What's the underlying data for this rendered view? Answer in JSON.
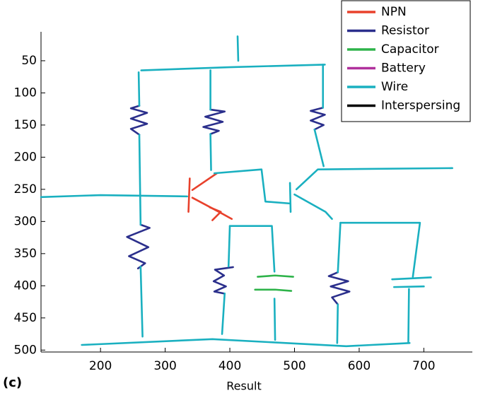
{
  "chart_data": {
    "type": "strokes",
    "x_label": "Result",
    "panel_label": "(c)",
    "xlim": [
      108,
      775
    ],
    "ylim": [
      5,
      503
    ],
    "y_inverted": true,
    "xticks": [
      200,
      300,
      400,
      500,
      600,
      700
    ],
    "yticks": [
      50,
      100,
      150,
      200,
      250,
      300,
      350,
      400,
      450,
      500
    ],
    "legend": "top-right",
    "series": [
      {
        "name": "NPN",
        "color": "#e8412c",
        "strokes": [
          {
            "x": [
              338,
              336
            ],
            "y": [
              233,
              285
            ]
          },
          {
            "x": [
              380,
              342
            ],
            "y": [
              225,
              251
            ]
          },
          {
            "x": [
              342,
              383,
              403
            ],
            "y": [
              263,
              285,
              296
            ]
          },
          {
            "x": [
              369,
              386,
              373
            ],
            "y": [
              278,
              285,
              298
            ]
          }
        ]
      },
      {
        "name": "Resistor",
        "color": "#2b2f8c",
        "strokes": [
          {
            "x": [
              260,
              247,
              272,
              247,
              272,
              247,
              260
            ],
            "y": [
              120,
              124,
              131,
              140,
              148,
              156,
              165
            ]
          },
          {
            "x": [
              262,
              276,
              241,
              274,
              244,
              269,
              258
            ],
            "y": [
              305,
              310,
              324,
              340,
              354,
              365,
              373
            ]
          },
          {
            "x": [
              370,
              392,
              362,
              389,
              359,
              383,
              370
            ],
            "y": [
              126,
              129,
              137,
              145,
              153,
              159,
              164
            ]
          },
          {
            "x": [
              544,
              525,
              547,
              525,
              545,
              531
            ],
            "y": [
              123,
              128,
              134,
              143,
              150,
              157
            ]
          },
          {
            "x": [
              405,
              377,
              391,
              375,
              394,
              376,
              391
            ],
            "y": [
              371,
              375,
              384,
              393,
              401,
              409,
              412
            ]
          },
          {
            "x": [
              567,
              553,
              583,
              556,
              585,
              558,
              567
            ],
            "y": [
              379,
              385,
              393,
              401,
              409,
              418,
              429
            ]
          }
        ]
      },
      {
        "name": "Capacitor",
        "color": "#2eb34a",
        "strokes": [
          {
            "x": [
              443,
              470,
              498
            ],
            "y": [
              386,
              384,
              386
            ]
          },
          {
            "x": [
              439,
              470,
              495
            ],
            "y": [
              406,
              406,
              408
            ]
          }
        ]
      },
      {
        "name": "Battery",
        "color": "#b0309c",
        "strokes": []
      },
      {
        "name": "Wire",
        "color": "#1ab0c0",
        "strokes": [
          {
            "x": [
              263,
              400,
              547
            ],
            "y": [
              65,
              60,
              56
            ]
          },
          {
            "x": [
              412,
              413
            ],
            "y": [
              12,
              50
            ]
          },
          {
            "x": [
              259,
              260
            ],
            "y": [
              68,
              120
            ]
          },
          {
            "x": [
              260,
              262
            ],
            "y": [
              165,
              305
            ]
          },
          {
            "x": [
              262,
              265
            ],
            "y": [
              370,
              479
            ]
          },
          {
            "x": [
              370,
              370
            ],
            "y": [
              65,
              126
            ]
          },
          {
            "x": [
              370,
              371
            ],
            "y": [
              164,
              220
            ]
          },
          {
            "x": [
              544,
              544
            ],
            "y": [
              56,
              123
            ]
          },
          {
            "x": [
              531,
              545
            ],
            "y": [
              157,
              214
            ]
          },
          {
            "x": [
              108,
              200,
              334
            ],
            "y": [
              262,
              259,
              261
            ]
          },
          {
            "x": [
              376,
              449,
              455,
              493
            ],
            "y": [
              225,
              219,
              269,
              272
            ]
          },
          {
            "x": [
              503,
              536,
              744
            ],
            "y": [
              250,
              219,
              217
            ]
          },
          {
            "x": [
              493,
              494
            ],
            "y": [
              240,
              285
            ]
          },
          {
            "x": [
              500,
              548,
              558
            ],
            "y": [
              258,
              285,
              296
            ]
          },
          {
            "x": [
              400,
              465,
              469
            ],
            "y": [
              307,
              307,
              378
            ]
          },
          {
            "x": [
              400,
              398
            ],
            "y": [
              307,
              370
            ]
          },
          {
            "x": [
              469,
              470
            ],
            "y": [
              420,
              484
            ]
          },
          {
            "x": [
              392,
              388
            ],
            "y": [
              412,
              475
            ]
          },
          {
            "x": [
              571,
              694,
              683
            ],
            "y": [
              302,
              302,
              386
            ]
          },
          {
            "x": [
              571,
              567
            ],
            "y": [
              302,
              379
            ]
          },
          {
            "x": [
              567,
              566
            ],
            "y": [
              429,
              489
            ]
          },
          {
            "x": [
              677,
              676
            ],
            "y": [
              405,
              489
            ]
          },
          {
            "x": [
              651,
              711
            ],
            "y": [
              390,
              387
            ]
          },
          {
            "x": [
              654,
              700
            ],
            "y": [
              402,
              401
            ]
          },
          {
            "x": [
              171,
              373,
              580,
              678
            ],
            "y": [
              492,
              483,
              494,
              489
            ]
          }
        ]
      },
      {
        "name": "Interspersing",
        "color": "#000000",
        "strokes": []
      }
    ]
  }
}
